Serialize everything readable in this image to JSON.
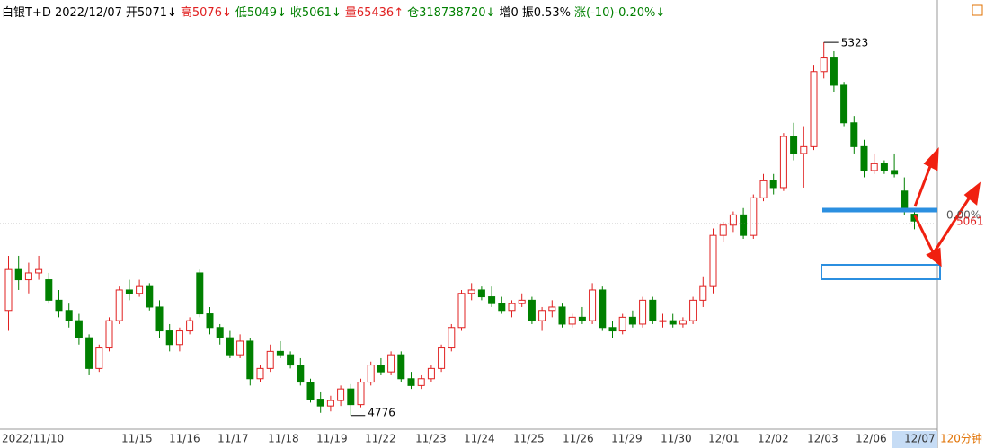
{
  "chart_data": {
    "type": "candlestick",
    "header": [
      {
        "text": "白银T+D 2022/12/07",
        "color": "#000000"
      },
      {
        "text": "开5071↓",
        "color": "#000000"
      },
      {
        "text": "高5076↓",
        "color": "#e02020"
      },
      {
        "text": "低5049↓",
        "color": "#008000"
      },
      {
        "text": "收5061↓",
        "color": "#008000"
      },
      {
        "text": "量65436↑",
        "color": "#e02020"
      },
      {
        "text": "仓318738720↓",
        "color": "#008000"
      },
      {
        "text": "增0",
        "color": "#000000"
      },
      {
        "text": "振0.53%",
        "color": "#000000"
      },
      {
        "text": "涨(-10)-0.20%↓",
        "color": "#008000"
      }
    ],
    "up_color": "#e02020",
    "down_color": "#008000",
    "ylim": [
      4756,
      5356
    ],
    "date_labels": [
      "2022/11/10",
      "11/15",
      "11/16",
      "11/17",
      "11/18",
      "11/19",
      "11/22",
      "11/23",
      "11/24",
      "11/25",
      "11/26",
      "11/29",
      "11/30",
      "12/01",
      "12/02",
      "12/03",
      "12/06",
      "12/07"
    ],
    "period_label": "120分钟",
    "last_pct_label": "0.00%",
    "last_price_label": "5061",
    "candles": [
      [
        4930,
        5010,
        4900,
        4990
      ],
      [
        4990,
        5010,
        4960,
        4975
      ],
      [
        4975,
        5000,
        4955,
        4985
      ],
      [
        4985,
        5010,
        4975,
        4990
      ],
      [
        4975,
        4985,
        4940,
        4945
      ],
      [
        4945,
        4960,
        4920,
        4930
      ],
      [
        4930,
        4940,
        4905,
        4915
      ],
      [
        4915,
        4925,
        4880,
        4890
      ],
      [
        4890,
        4895,
        4835,
        4845
      ],
      [
        4845,
        4880,
        4840,
        4875
      ],
      [
        4875,
        4920,
        4870,
        4915
      ],
      [
        4915,
        4965,
        4910,
        4960
      ],
      [
        4960,
        4975,
        4945,
        4955
      ],
      [
        4955,
        4975,
        4950,
        4965
      ],
      [
        4965,
        4970,
        4930,
        4935
      ],
      [
        4935,
        4945,
        4890,
        4900
      ],
      [
        4900,
        4910,
        4870,
        4880
      ],
      [
        4880,
        4905,
        4870,
        4900
      ],
      [
        4900,
        4920,
        4895,
        4915
      ],
      [
        4985,
        4990,
        4920,
        4925
      ],
      [
        4925,
        4935,
        4895,
        4905
      ],
      [
        4905,
        4910,
        4880,
        4890
      ],
      [
        4890,
        4900,
        4860,
        4865
      ],
      [
        4865,
        4895,
        4860,
        4885
      ],
      [
        4885,
        4890,
        4820,
        4830
      ],
      [
        4830,
        4850,
        4825,
        4845
      ],
      [
        4845,
        4880,
        4840,
        4870
      ],
      [
        4870,
        4885,
        4860,
        4865
      ],
      [
        4865,
        4870,
        4845,
        4850
      ],
      [
        4850,
        4860,
        4820,
        4825
      ],
      [
        4825,
        4830,
        4795,
        4800
      ],
      [
        4800,
        4810,
        4780,
        4790
      ],
      [
        4790,
        4805,
        4782,
        4798
      ],
      [
        4798,
        4820,
        4790,
        4815
      ],
      [
        4815,
        4822,
        4776,
        4792
      ],
      [
        4792,
        4830,
        4788,
        4825
      ],
      [
        4825,
        4855,
        4820,
        4850
      ],
      [
        4850,
        4860,
        4835,
        4840
      ],
      [
        4840,
        4870,
        4835,
        4865
      ],
      [
        4865,
        4870,
        4825,
        4830
      ],
      [
        4830,
        4840,
        4815,
        4820
      ],
      [
        4820,
        4835,
        4815,
        4830
      ],
      [
        4830,
        4850,
        4825,
        4845
      ],
      [
        4845,
        4880,
        4840,
        4875
      ],
      [
        4875,
        4910,
        4870,
        4905
      ],
      [
        4905,
        4960,
        4900,
        4955
      ],
      [
        4955,
        4970,
        4945,
        4960
      ],
      [
        4960,
        4965,
        4945,
        4950
      ],
      [
        4950,
        4965,
        4935,
        4940
      ],
      [
        4940,
        4950,
        4925,
        4930
      ],
      [
        4930,
        4945,
        4920,
        4940
      ],
      [
        4940,
        4955,
        4935,
        4945
      ],
      [
        4945,
        4950,
        4910,
        4915
      ],
      [
        4915,
        4935,
        4900,
        4930
      ],
      [
        4930,
        4945,
        4920,
        4935
      ],
      [
        4935,
        4940,
        4905,
        4910
      ],
      [
        4910,
        4925,
        4905,
        4920
      ],
      [
        4920,
        4935,
        4910,
        4915
      ],
      [
        4915,
        4970,
        4910,
        4960
      ],
      [
        4960,
        4965,
        4900,
        4905
      ],
      [
        4905,
        4915,
        4890,
        4900
      ],
      [
        4900,
        4925,
        4895,
        4920
      ],
      [
        4920,
        4930,
        4905,
        4910
      ],
      [
        4910,
        4950,
        4905,
        4945
      ],
      [
        4945,
        4950,
        4910,
        4915
      ],
      [
        4915,
        4925,
        4905,
        4915
      ],
      [
        4915,
        4925,
        4905,
        4910
      ],
      [
        4910,
        4920,
        4905,
        4915
      ],
      [
        4915,
        4950,
        4910,
        4945
      ],
      [
        4945,
        4980,
        4935,
        4965
      ],
      [
        4965,
        5050,
        4955,
        5040
      ],
      [
        5040,
        5060,
        5030,
        5055
      ],
      [
        5055,
        5075,
        5045,
        5070
      ],
      [
        5070,
        5080,
        5035,
        5040
      ],
      [
        5040,
        5100,
        5035,
        5095
      ],
      [
        5095,
        5130,
        5090,
        5120
      ],
      [
        5120,
        5130,
        5100,
        5110
      ],
      [
        5110,
        5190,
        5105,
        5185
      ],
      [
        5185,
        5205,
        5150,
        5160
      ],
      [
        5160,
        5200,
        5110,
        5170
      ],
      [
        5170,
        5290,
        5165,
        5280
      ],
      [
        5280,
        5323,
        5270,
        5300
      ],
      [
        5300,
        5310,
        5250,
        5260
      ],
      [
        5260,
        5265,
        5200,
        5205
      ],
      [
        5205,
        5215,
        5160,
        5170
      ],
      [
        5170,
        5180,
        5125,
        5135
      ],
      [
        5135,
        5160,
        5130,
        5145
      ],
      [
        5145,
        5150,
        5130,
        5135
      ],
      [
        5135,
        5160,
        5125,
        5130
      ],
      [
        5105,
        5125,
        5070,
        5075
      ],
      [
        5071,
        5076,
        5049,
        5061
      ]
    ]
  }
}
